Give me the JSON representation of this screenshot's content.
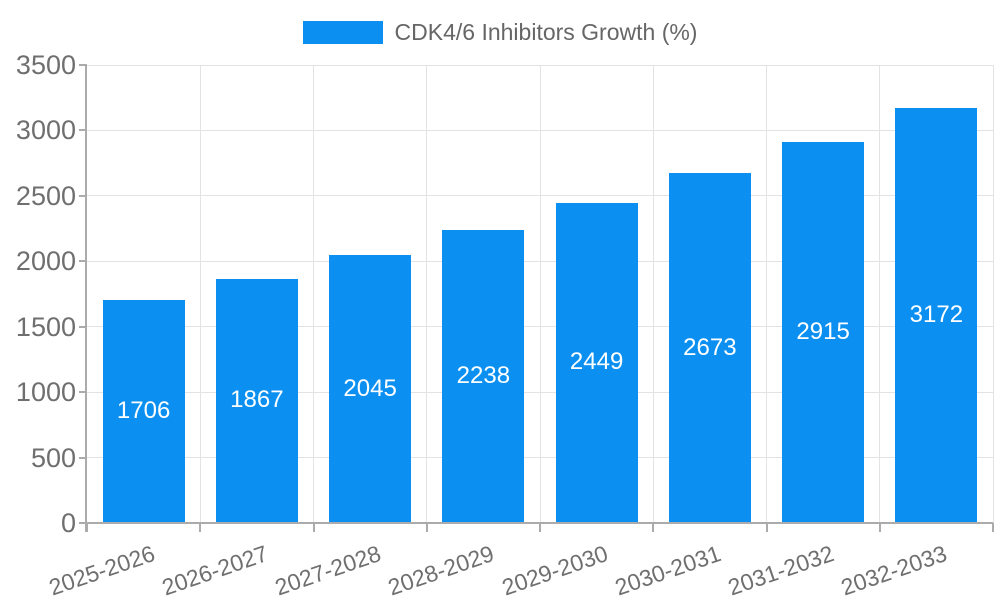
{
  "chart_data": {
    "type": "bar",
    "title": "",
    "legend": {
      "position": "top-center",
      "entries": [
        {
          "label": "CDK4/6 Inhibitors Growth (%)",
          "swatch_color": "#0b90f2"
        }
      ]
    },
    "categories": [
      "2025-2026",
      "2026-2027",
      "2027-2028",
      "2028-2029",
      "2029-2030",
      "2030-2031",
      "2031-2032",
      "2032-2033"
    ],
    "series": [
      {
        "name": "CDK4/6 Inhibitors Growth (%)",
        "values": [
          1706,
          1867,
          2045,
          2238,
          2449,
          2673,
          2915,
          3172
        ]
      }
    ],
    "bar_labels": [
      "1706",
      "1867",
      "2045",
      "2238",
      "2449",
      "2673",
      "2915",
      "3172"
    ],
    "xlabel": "",
    "ylabel": "",
    "ylim": [
      0,
      3500
    ],
    "ytick_step": 500,
    "yticks": [
      0,
      500,
      1000,
      1500,
      2000,
      2500,
      3000,
      3500
    ],
    "grid": "on",
    "x_tick_rotation_deg": -19,
    "colors": {
      "bar": "#0b90f2",
      "bar_value_text": "#ffffff",
      "axis_text": "#6f6f6f",
      "legend_text": "#666666",
      "gridline": "#e3e3e3",
      "axis_line": "#ababab",
      "background": "#ffffff"
    }
  }
}
